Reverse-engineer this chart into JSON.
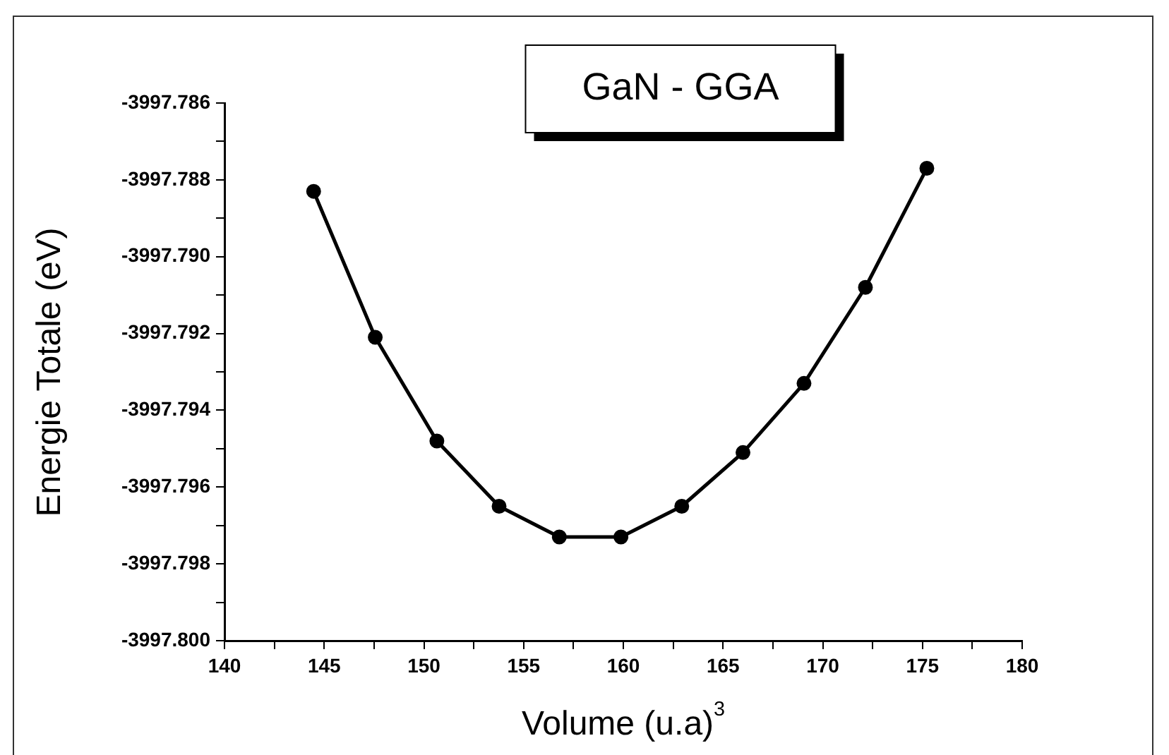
{
  "chart_data": {
    "type": "line",
    "title": "GaN - GGA",
    "xlabel": "Volume (u.a)$^{3}$",
    "ylabel": "Energie Totale (eV)",
    "x": [
      144.47,
      147.56,
      150.65,
      153.77,
      156.79,
      159.88,
      162.93,
      166.0,
      169.06,
      172.14,
      175.22
    ],
    "series": [
      {
        "color": "#000000",
        "values": [
          -3997.7883,
          -3997.7921,
          -3997.7948,
          -3997.7965,
          -3997.7973,
          -3997.7973,
          -3997.7965,
          -3997.7951,
          -3997.7933,
          -3997.7908,
          -3997.7877
        ]
      }
    ],
    "xlim": [
      140,
      180
    ],
    "xticks": [
      140,
      {
        "value": 142.5,
        "label": null
      },
      145,
      {
        "value": 147.5,
        "label": null
      },
      150,
      {
        "value": 152.5,
        "label": null
      },
      155,
      {
        "value": 157.5,
        "label": null
      },
      160,
      {
        "value": 162.5,
        "label": null
      },
      165,
      {
        "value": 167.5,
        "label": null
      },
      170,
      {
        "value": 172.5,
        "label": null
      },
      175,
      {
        "value": 177.5,
        "label": null
      },
      180
    ],
    "ylim": [
      -3997.8,
      -3997.786
    ],
    "yticks": [
      {
        "value": -3997.8,
        "label": "-3997.800"
      },
      {
        "value": -3997.799,
        "label": null
      },
      -3997.798,
      {
        "value": -3997.797,
        "label": null
      },
      -3997.796,
      {
        "value": -3997.795,
        "label": null
      },
      -3997.794,
      {
        "value": -3997.793,
        "label": null
      },
      -3997.792,
      {
        "value": -3997.791,
        "label": null
      },
      {
        "value": -3997.79,
        "label": "-3997.790"
      },
      {
        "value": -3997.789,
        "label": null
      },
      -3997.788,
      {
        "value": -3997.787,
        "label": null
      },
      -3997.786
    ],
    "marker": "circle",
    "line_style": "solid",
    "legend": false
  }
}
